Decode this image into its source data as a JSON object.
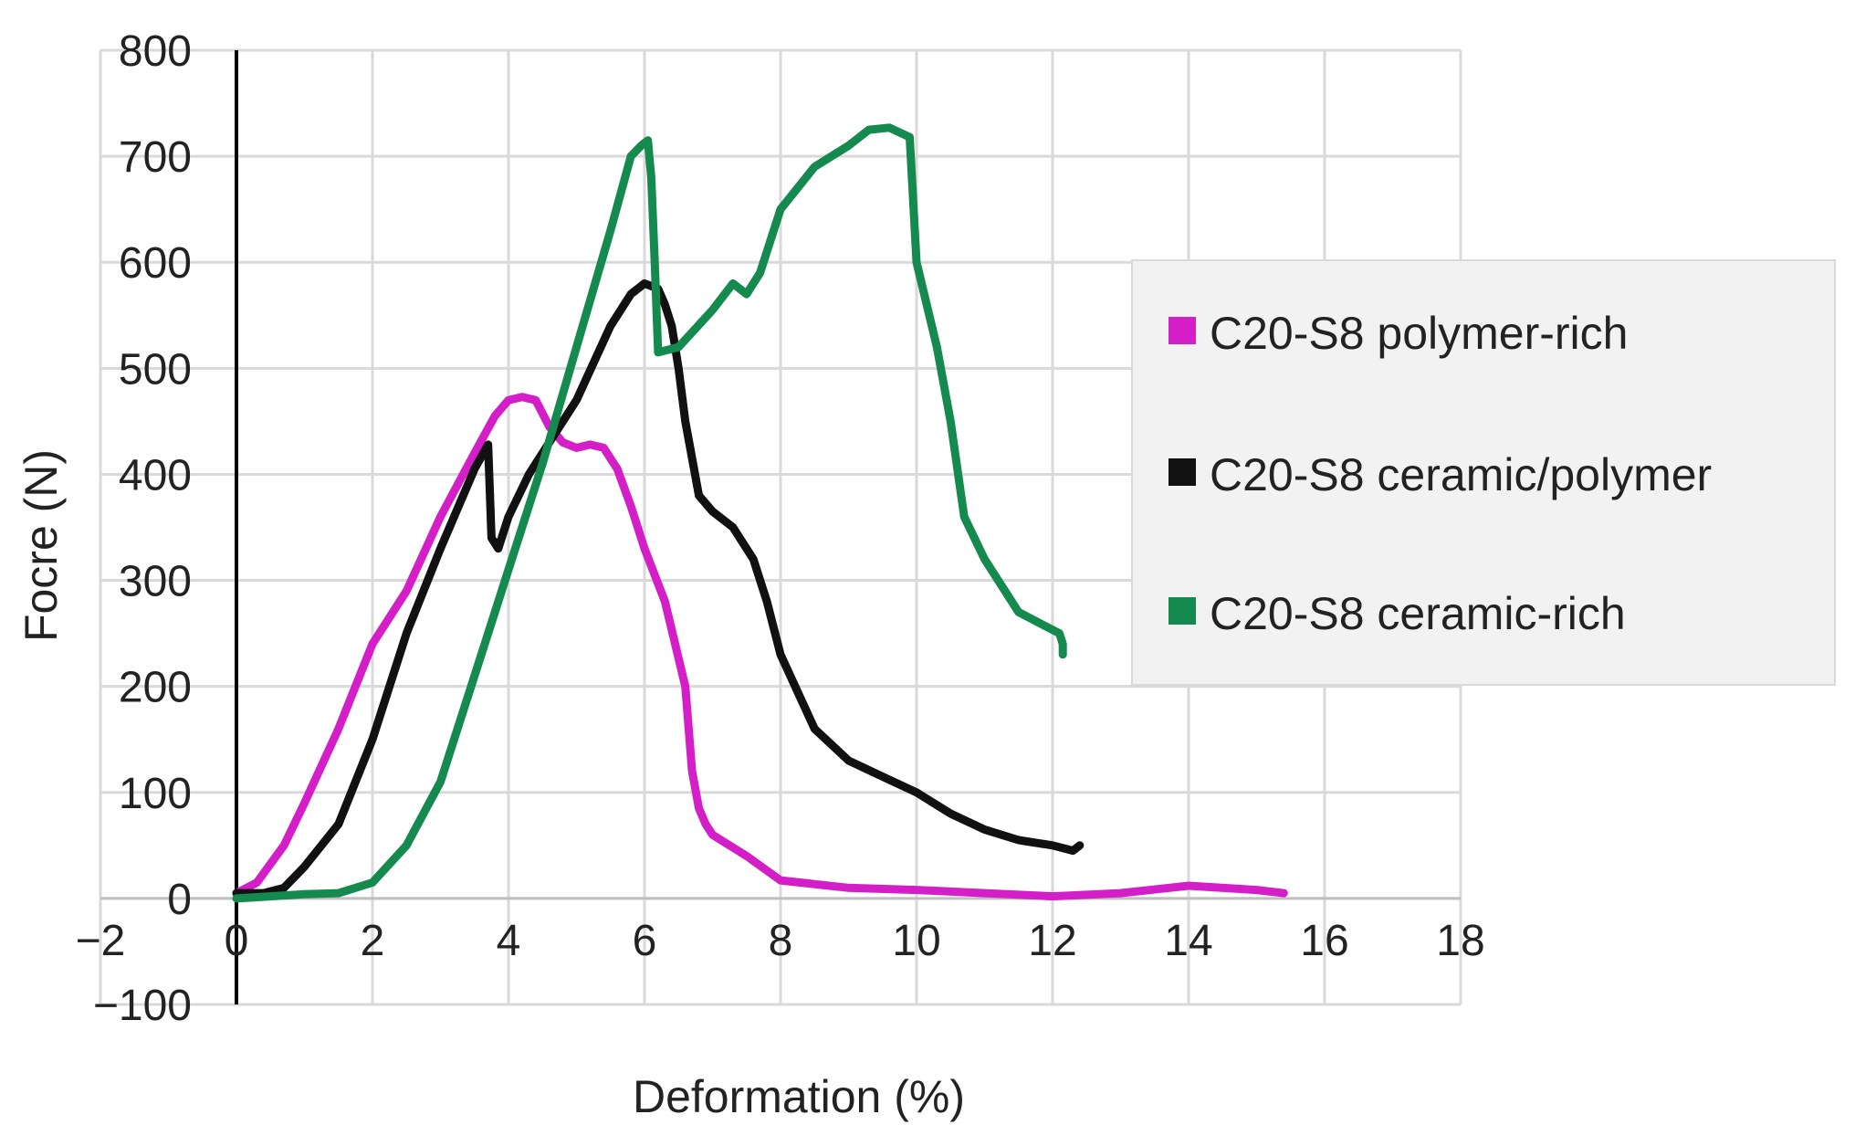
{
  "chart_data": {
    "type": "line",
    "title": "",
    "xlabel": "Deformation (%)",
    "ylabel": "Focre (N)",
    "xlim": [
      -2,
      18
    ],
    "ylim": [
      -100,
      800
    ],
    "xticks": [
      -2,
      0,
      2,
      4,
      6,
      8,
      10,
      12,
      14,
      16,
      18
    ],
    "yticks": [
      -100,
      0,
      100,
      200,
      300,
      400,
      500,
      600,
      700,
      800
    ],
    "xtick_labels": [
      "−2",
      "0",
      "2",
      "4",
      "6",
      "8",
      "10",
      "12",
      "14",
      "16",
      "18"
    ],
    "ytick_labels": [
      "−100",
      "0",
      "100",
      "200",
      "300",
      "400",
      "500",
      "600",
      "700",
      "800"
    ],
    "grid": true,
    "legend_position": "right",
    "series": [
      {
        "name": "C20-S8 polymer-rich",
        "color": "#d41fc8",
        "x": [
          0,
          0.3,
          0.7,
          1.0,
          1.5,
          2.0,
          2.5,
          3.0,
          3.5,
          3.8,
          4.0,
          4.2,
          4.4,
          4.6,
          4.8,
          5.0,
          5.2,
          5.4,
          5.6,
          5.8,
          6.0,
          6.3,
          6.6,
          6.7,
          6.8,
          6.9,
          7.0,
          7.5,
          8.0,
          9.0,
          10.0,
          11.0,
          12.0,
          13.0,
          14.0,
          15.0,
          15.4
        ],
        "y": [
          5,
          15,
          50,
          90,
          160,
          240,
          290,
          360,
          420,
          455,
          470,
          473,
          470,
          445,
          430,
          425,
          428,
          425,
          405,
          370,
          330,
          280,
          200,
          120,
          85,
          70,
          60,
          40,
          17,
          10,
          8,
          5,
          2,
          5,
          12,
          8,
          5
        ]
      },
      {
        "name": "C20-S8 ceramic/polymer",
        "color": "#111111",
        "x": [
          0,
          0.4,
          0.7,
          1.0,
          1.5,
          2.0,
          2.5,
          3.0,
          3.5,
          3.7,
          3.75,
          3.85,
          4.0,
          4.3,
          4.6,
          5.0,
          5.5,
          5.8,
          6.0,
          6.2,
          6.3,
          6.4,
          6.5,
          6.6,
          6.8,
          7.0,
          7.3,
          7.6,
          7.8,
          8.0,
          8.5,
          9.0,
          9.5,
          10.0,
          10.5,
          11.0,
          11.5,
          12.0,
          12.3,
          12.4
        ],
        "y": [
          5,
          5,
          10,
          30,
          70,
          150,
          250,
          330,
          405,
          428,
          340,
          330,
          360,
          400,
          430,
          470,
          540,
          570,
          580,
          575,
          560,
          540,
          500,
          450,
          380,
          365,
          350,
          320,
          280,
          230,
          160,
          130,
          115,
          100,
          80,
          65,
          55,
          50,
          45,
          50
        ]
      },
      {
        "name": "C20-S8 ceramic-rich",
        "color": "#148a4f",
        "x": [
          0,
          0.5,
          1.0,
          1.5,
          2.0,
          2.5,
          3.0,
          3.5,
          4.0,
          4.5,
          5.0,
          5.5,
          5.8,
          5.95,
          6.05,
          6.1,
          6.15,
          6.2,
          6.5,
          7.0,
          7.3,
          7.5,
          7.7,
          8.0,
          8.5,
          9.0,
          9.3,
          9.6,
          9.9,
          10.0,
          10.3,
          10.5,
          10.7,
          11.0,
          11.5,
          11.8,
          12.1,
          12.15,
          12.15
        ],
        "y": [
          0,
          2,
          4,
          5,
          15,
          50,
          110,
          210,
          310,
          410,
          520,
          630,
          700,
          710,
          715,
          680,
          600,
          515,
          520,
          555,
          580,
          570,
          590,
          650,
          690,
          710,
          725,
          727,
          718,
          600,
          520,
          450,
          360,
          320,
          270,
          260,
          250,
          240,
          230
        ]
      }
    ]
  }
}
